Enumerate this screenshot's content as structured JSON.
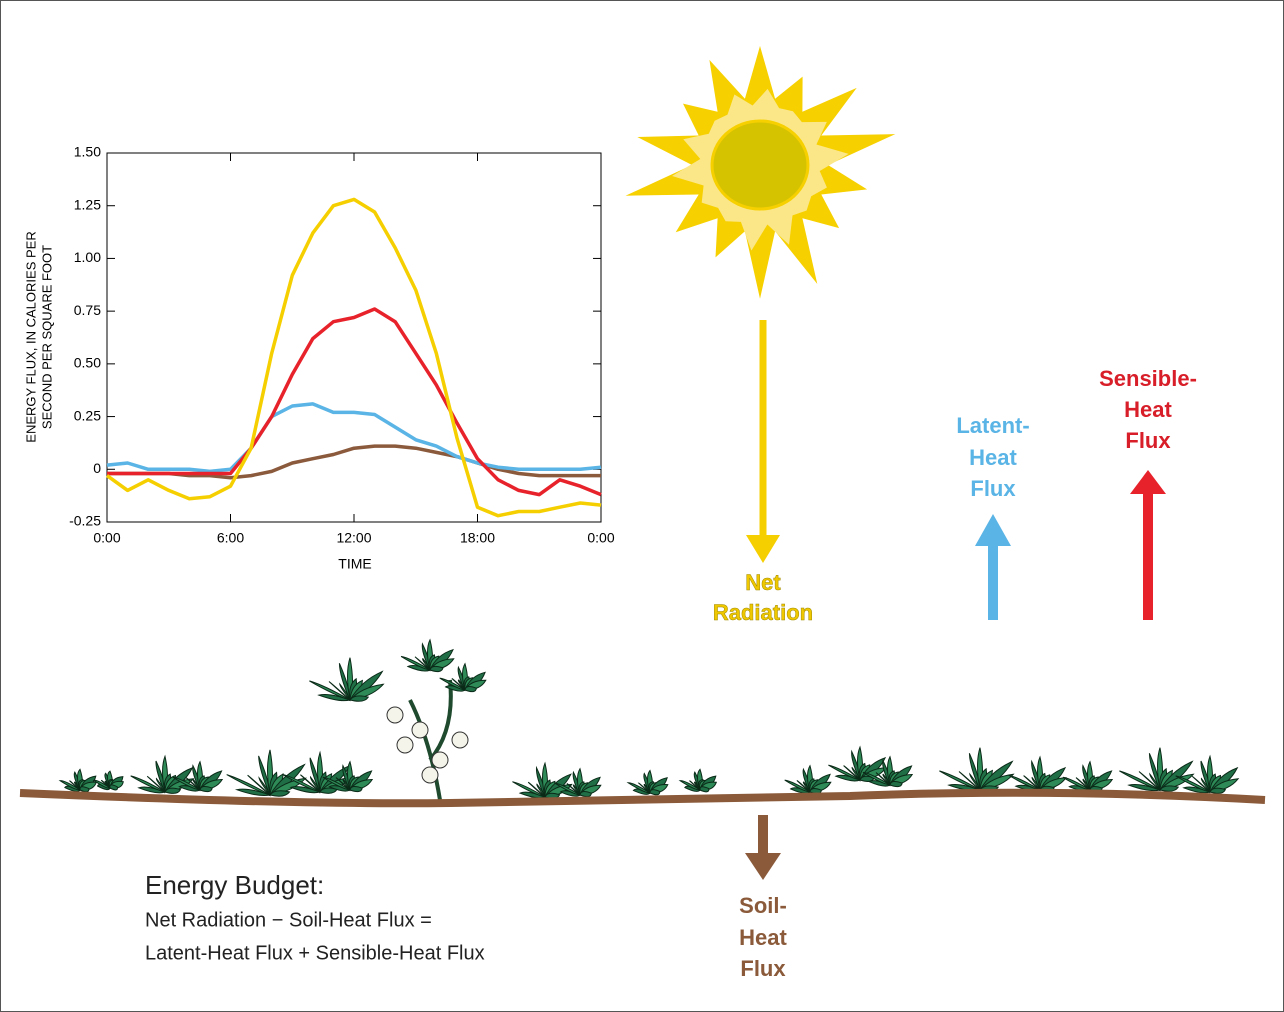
{
  "chart_data": {
    "type": "line",
    "xlabel": "TIME",
    "ylabel": [
      "ENERGY FLUX, IN CALORIES PER",
      "SECOND PER SQUARE FOOT"
    ],
    "x": [
      0,
      1,
      2,
      3,
      4,
      5,
      6,
      7,
      8,
      9,
      10,
      11,
      12,
      13,
      14,
      15,
      16,
      17,
      18,
      19,
      20,
      21,
      22,
      23,
      24
    ],
    "xlim": [
      0,
      24
    ],
    "xticks": [
      {
        "value": 0,
        "label": "0:00"
      },
      {
        "value": 6,
        "label": "6:00"
      },
      {
        "value": 12,
        "label": "12:00"
      },
      {
        "value": 18,
        "label": "18:00"
      },
      {
        "value": 24,
        "label": "0:00"
      }
    ],
    "ylim": [
      -0.25,
      1.5
    ],
    "yticks": [
      {
        "value": -0.25,
        "label": "-0.25"
      },
      0,
      {
        "value": 0.25,
        "label": "0.25"
      },
      {
        "value": 0.5,
        "label": "0.50"
      },
      {
        "value": 0.75,
        "label": "0.75"
      },
      {
        "value": 1.0,
        "label": "1.00"
      },
      {
        "value": 1.25,
        "label": "1.25"
      },
      {
        "value": 1.5,
        "label": "1.50"
      }
    ],
    "series": [
      {
        "color": "#8b5a3c",
        "values": [
          -0.02,
          -0.02,
          -0.02,
          -0.02,
          -0.03,
          -0.03,
          -0.04,
          -0.03,
          -0.01,
          0.03,
          0.05,
          0.07,
          0.1,
          0.11,
          0.11,
          0.1,
          0.08,
          0.06,
          0.03,
          0.0,
          -0.02,
          -0.03,
          -0.03,
          -0.03,
          -0.03
        ]
      },
      {
        "color": "#5ab4e5",
        "values": [
          0.02,
          0.03,
          0.0,
          0.0,
          0.0,
          -0.01,
          0.0,
          0.1,
          0.25,
          0.3,
          0.31,
          0.27,
          0.27,
          0.26,
          0.2,
          0.14,
          0.11,
          0.06,
          0.03,
          0.01,
          0.0,
          0.0,
          0.0,
          0.0,
          0.01
        ]
      },
      {
        "color": "#e8222a",
        "values": [
          -0.02,
          -0.02,
          -0.02,
          -0.02,
          -0.02,
          -0.02,
          -0.02,
          0.1,
          0.25,
          0.45,
          0.62,
          0.7,
          0.72,
          0.76,
          0.7,
          0.55,
          0.4,
          0.22,
          0.05,
          -0.05,
          -0.1,
          -0.12,
          -0.05,
          -0.08,
          -0.12
        ]
      },
      {
        "color": "#f5cf00",
        "values": [
          -0.03,
          -0.1,
          -0.05,
          -0.1,
          -0.14,
          -0.13,
          -0.08,
          0.1,
          0.55,
          0.92,
          1.12,
          1.25,
          1.28,
          1.22,
          1.05,
          0.85,
          0.55,
          0.15,
          -0.18,
          -0.22,
          -0.2,
          -0.2,
          -0.18,
          -0.16,
          -0.17
        ]
      }
    ]
  },
  "labels": {
    "net_radiation": [
      "Net",
      "Radiation"
    ],
    "latent_heat_flux": [
      "Latent-",
      "Heat",
      "Flux"
    ],
    "sensible_heat_flux": [
      "Sensible-",
      "Heat",
      "Flux"
    ],
    "soil_heat_flux": [
      "Soil-",
      "Heat",
      "Flux"
    ]
  },
  "energy_budget": {
    "title": "Energy Budget:",
    "lines": [
      "Net Radiation − Soil-Heat Flux =",
      "Latent-Heat Flux + Sensible-Heat Flux"
    ]
  }
}
